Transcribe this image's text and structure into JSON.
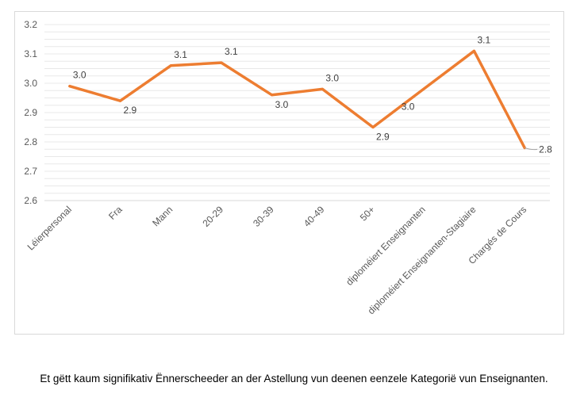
{
  "chart_data": {
    "type": "line",
    "title": "",
    "xlabel": "",
    "ylabel": "",
    "ylim": [
      2.6,
      3.2
    ],
    "yticks": [
      "2.6",
      "2.7",
      "2.8",
      "2.9",
      "3.0",
      "3.1",
      "3.2"
    ],
    "grid": true,
    "categories": [
      "Léierpersonal",
      "Fra",
      "Mann",
      "20-29",
      "30-39",
      "40-49",
      "50+",
      "diploméiert Enseignanten",
      "diploméiert Enseignanten-Stagiaire",
      "Chargés de Cours"
    ],
    "series": [
      {
        "name": "Astellung",
        "values": [
          2.99,
          2.94,
          3.06,
          3.07,
          2.96,
          2.98,
          2.85,
          2.98,
          3.11,
          2.78
        ],
        "labels": [
          "3.0",
          "2.9",
          "3.1",
          "3.1",
          "3.0",
          "3.0",
          "2.9",
          "3.0",
          "3.1",
          "2.8"
        ],
        "color": "#ED7D31"
      }
    ]
  },
  "caption": "Et gëtt kaum signifikativ Ënnerscheeder an der Astellung vun deenen eenzele Kategorië vun Enseignanten."
}
